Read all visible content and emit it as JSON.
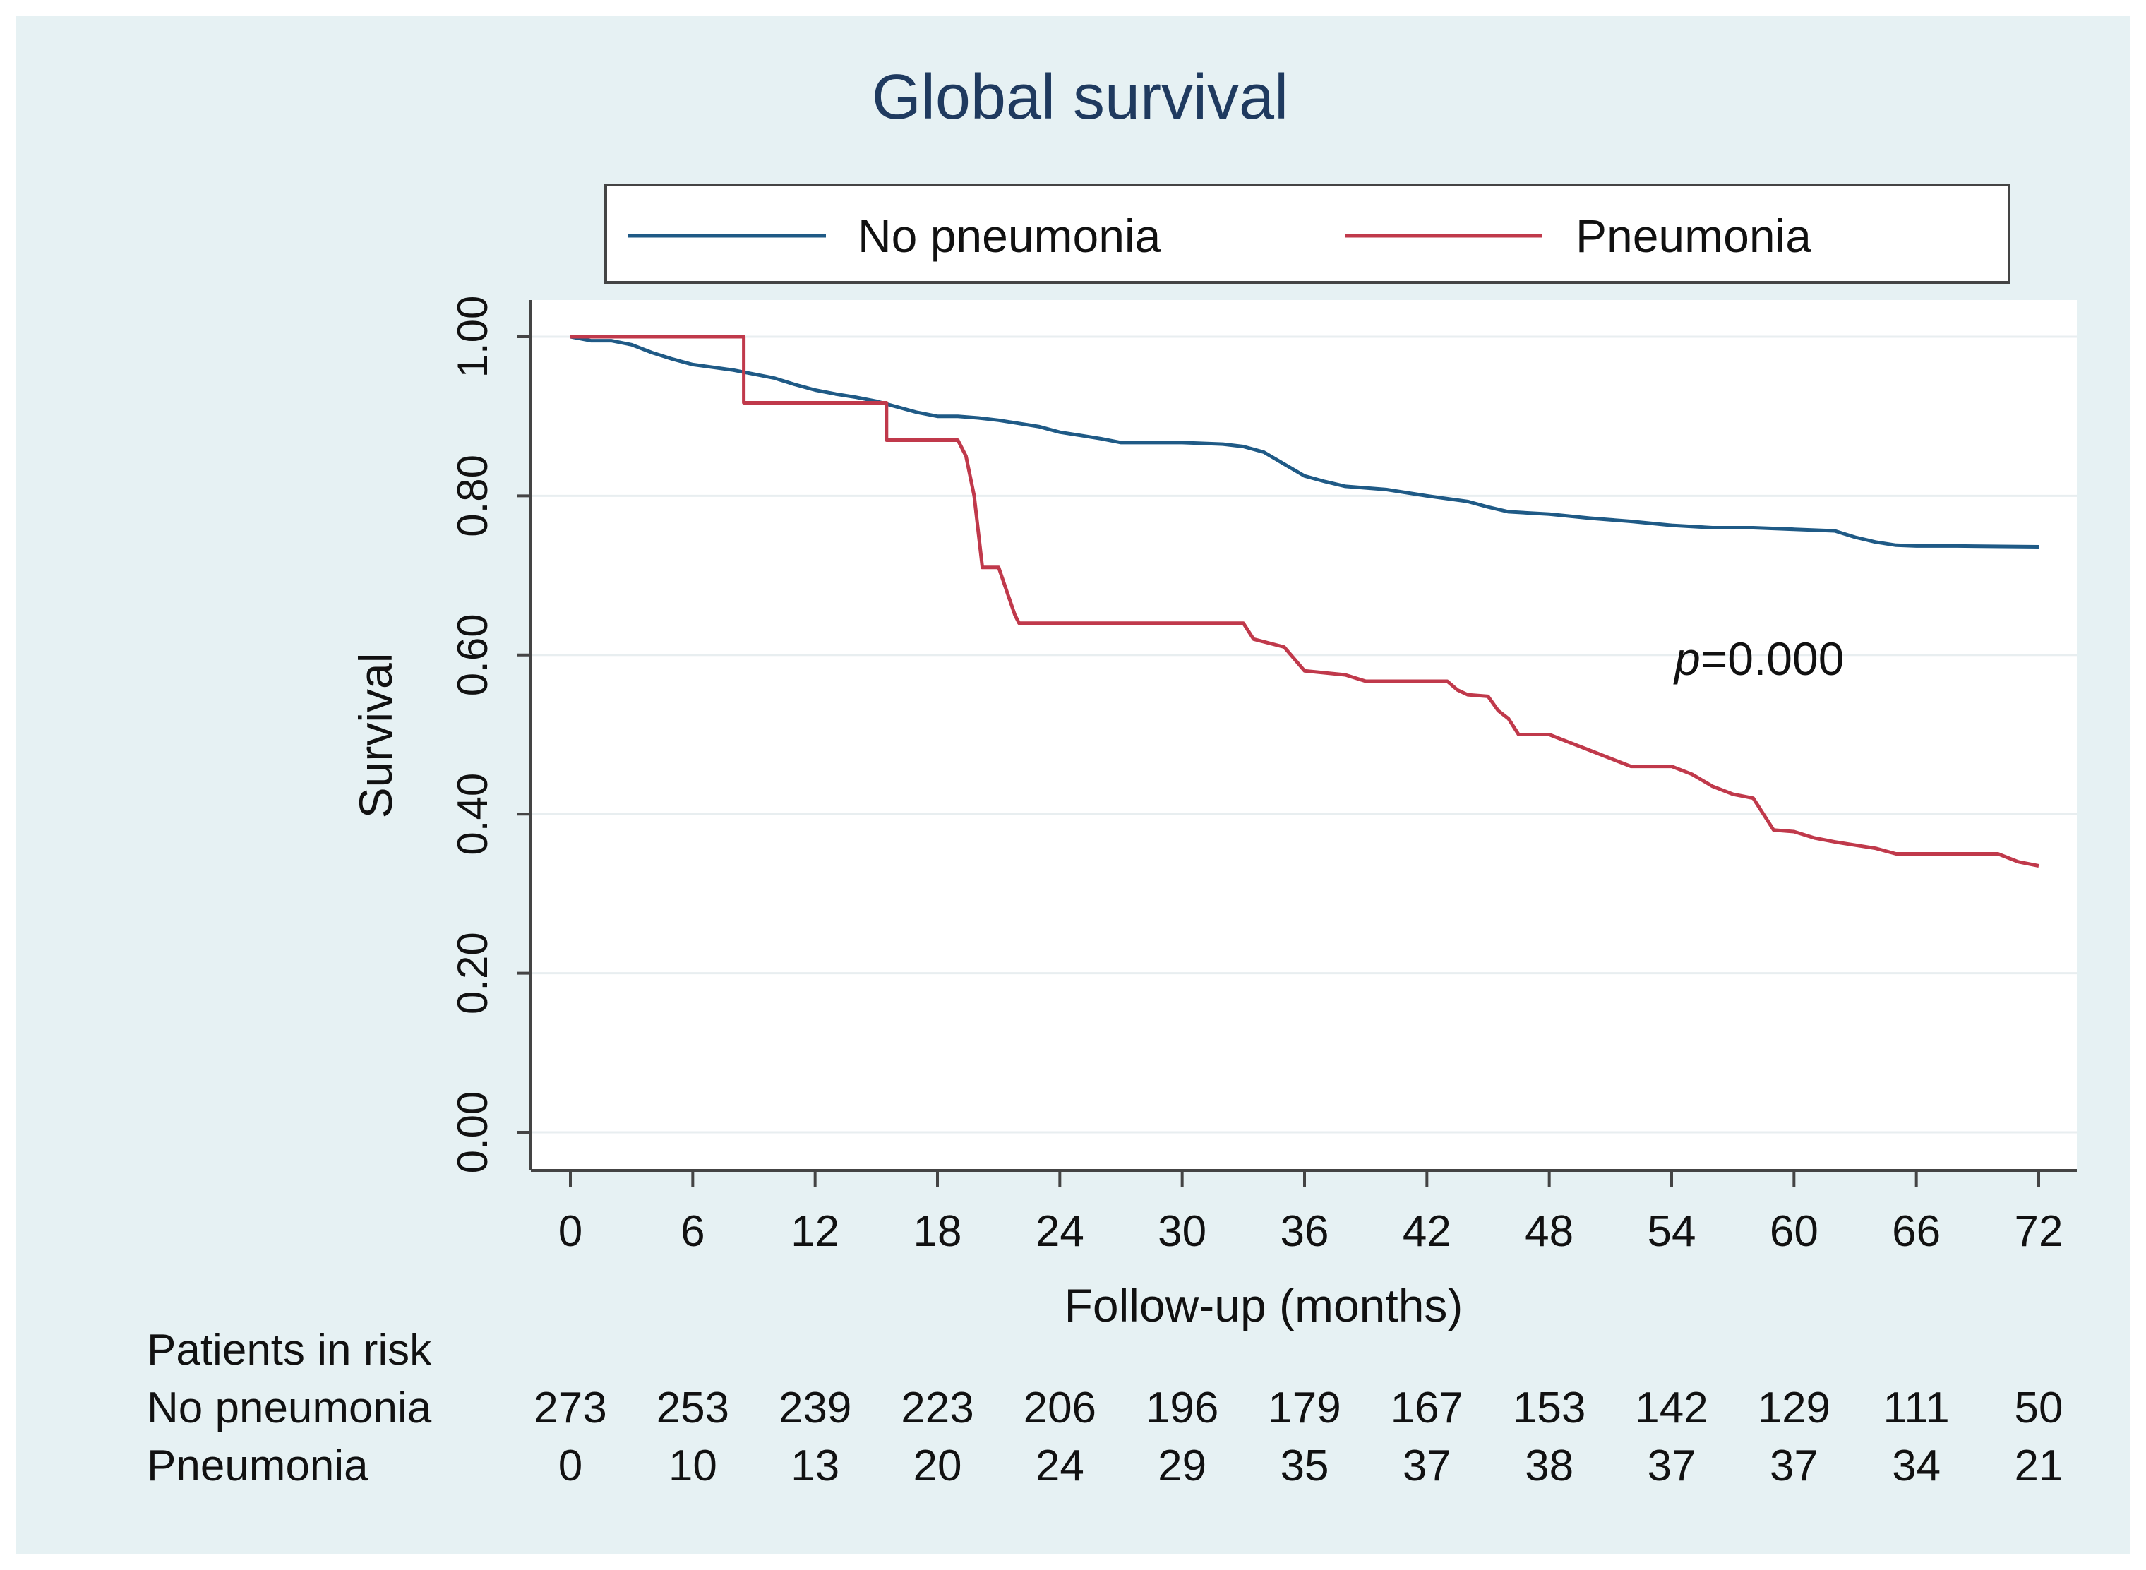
{
  "chart_data": {
    "type": "line",
    "title": "Global survival",
    "xlabel": "Follow-up (months)",
    "ylabel": "Survival",
    "xlim": [
      0,
      72
    ],
    "ylim": [
      0,
      1
    ],
    "x_ticks": [
      0,
      6,
      12,
      18,
      24,
      30,
      36,
      42,
      48,
      54,
      60,
      66,
      72
    ],
    "y_ticks": [
      "0.00",
      "0.20",
      "0.40",
      "0.60",
      "0.80",
      "1.00"
    ],
    "grid": true,
    "legend_position": "top",
    "annotation": {
      "prefix": "p",
      "suffix": "=0.000",
      "x": 54,
      "y": 0.6
    },
    "series": [
      {
        "name": "No pneumonia",
        "color": "#1f5a86",
        "points": [
          [
            0,
            1.0
          ],
          [
            1,
            0.995
          ],
          [
            2,
            0.995
          ],
          [
            3,
            0.99
          ],
          [
            4,
            0.98
          ],
          [
            5,
            0.972
          ],
          [
            6,
            0.965
          ],
          [
            8,
            0.958
          ],
          [
            10,
            0.948
          ],
          [
            11,
            0.94
          ],
          [
            12,
            0.933
          ],
          [
            13,
            0.928
          ],
          [
            14,
            0.924
          ],
          [
            15,
            0.919
          ],
          [
            16,
            0.912
          ],
          [
            17,
            0.905
          ],
          [
            18,
            0.9
          ],
          [
            19,
            0.9
          ],
          [
            20,
            0.898
          ],
          [
            21,
            0.895
          ],
          [
            22,
            0.891
          ],
          [
            23,
            0.887
          ],
          [
            24,
            0.88
          ],
          [
            25,
            0.876
          ],
          [
            26,
            0.872
          ],
          [
            27,
            0.867
          ],
          [
            28,
            0.867
          ],
          [
            30,
            0.867
          ],
          [
            32,
            0.865
          ],
          [
            33,
            0.862
          ],
          [
            34,
            0.855
          ],
          [
            35,
            0.84
          ],
          [
            36,
            0.825
          ],
          [
            37,
            0.818
          ],
          [
            38,
            0.812
          ],
          [
            40,
            0.808
          ],
          [
            42,
            0.8
          ],
          [
            44,
            0.793
          ],
          [
            45,
            0.786
          ],
          [
            46,
            0.78
          ],
          [
            48,
            0.777
          ],
          [
            50,
            0.772
          ],
          [
            52,
            0.768
          ],
          [
            54,
            0.763
          ],
          [
            56,
            0.76
          ],
          [
            58,
            0.76
          ],
          [
            60,
            0.758
          ],
          [
            62,
            0.756
          ],
          [
            63,
            0.748
          ],
          [
            64,
            0.742
          ],
          [
            65,
            0.738
          ],
          [
            66,
            0.737
          ],
          [
            68,
            0.737
          ],
          [
            72,
            0.736
          ]
        ]
      },
      {
        "name": "Pneumonia",
        "color": "#c0394b",
        "points": [
          [
            0,
            1.0
          ],
          [
            8.5,
            1.0
          ],
          [
            8.5,
            0.917
          ],
          [
            15.5,
            0.917
          ],
          [
            15.5,
            0.87
          ],
          [
            19,
            0.87
          ],
          [
            19.4,
            0.85
          ],
          [
            19.8,
            0.8
          ],
          [
            20.2,
            0.71
          ],
          [
            21,
            0.71
          ],
          [
            21.4,
            0.68
          ],
          [
            21.8,
            0.65
          ],
          [
            22,
            0.64
          ],
          [
            33,
            0.64
          ],
          [
            33.5,
            0.62
          ],
          [
            35,
            0.61
          ],
          [
            36,
            0.58
          ],
          [
            38,
            0.575
          ],
          [
            39,
            0.567
          ],
          [
            43,
            0.567
          ],
          [
            43.5,
            0.556
          ],
          [
            44,
            0.55
          ],
          [
            45,
            0.548
          ],
          [
            45.5,
            0.53
          ],
          [
            46,
            0.52
          ],
          [
            46.5,
            0.5
          ],
          [
            48,
            0.5
          ],
          [
            49,
            0.49
          ],
          [
            50,
            0.48
          ],
          [
            51,
            0.47
          ],
          [
            52,
            0.46
          ],
          [
            54,
            0.46
          ],
          [
            55,
            0.45
          ],
          [
            56,
            0.435
          ],
          [
            57,
            0.425
          ],
          [
            58,
            0.42
          ],
          [
            58.5,
            0.4
          ],
          [
            59,
            0.38
          ],
          [
            60,
            0.378
          ],
          [
            61,
            0.37
          ],
          [
            62,
            0.365
          ],
          [
            64,
            0.357
          ],
          [
            65,
            0.35
          ],
          [
            70,
            0.35
          ],
          [
            71,
            0.34
          ],
          [
            72,
            0.335
          ]
        ]
      }
    ]
  },
  "risk_table": {
    "heading": "Patients in risk",
    "rows": [
      {
        "label": "No pneumonia",
        "values": [
          "273",
          "253",
          "239",
          "223",
          "206",
          "196",
          "179",
          "167",
          "153",
          "142",
          "129",
          "111",
          "50"
        ]
      },
      {
        "label": "Pneumonia",
        "values": [
          "0",
          "10",
          "13",
          "20",
          "24",
          "29",
          "35",
          "37",
          "38",
          "37",
          "37",
          "34",
          "21"
        ]
      }
    ]
  },
  "colors": {
    "background": "#e6f1f3",
    "plot_background": "#ffffff",
    "axis": "#444444",
    "grid": "#e8eef0",
    "title": "#1f3a5f",
    "text": "#111111"
  }
}
